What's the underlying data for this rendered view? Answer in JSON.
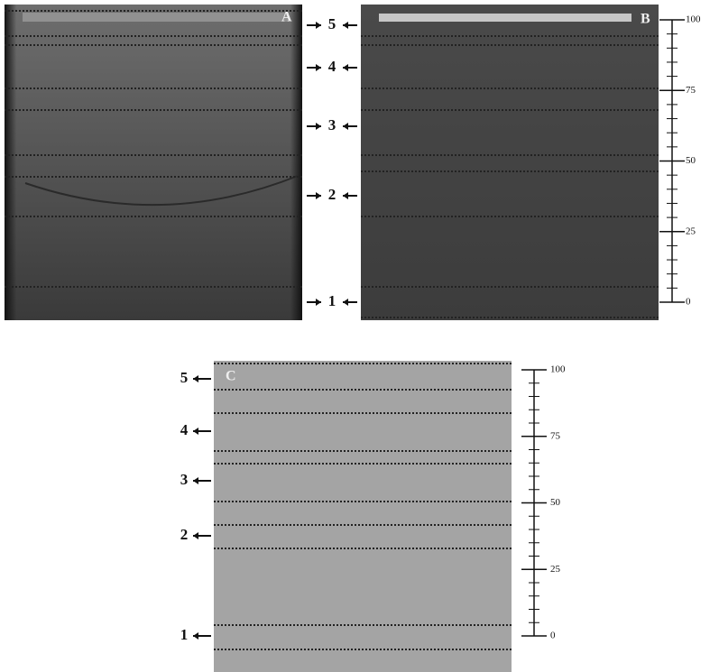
{
  "panels": [
    {
      "label": "A"
    },
    {
      "label": "B"
    },
    {
      "label": "C"
    }
  ],
  "zone_labels_ab": [
    "5",
    "4",
    "3",
    "2",
    "1"
  ],
  "zone_labels_c": [
    "5",
    "4",
    "3",
    "2",
    "1"
  ],
  "scale_b": [
    "100",
    "75",
    "50",
    "25",
    "0"
  ],
  "scale_c": [
    "100",
    "75",
    "50",
    "25",
    "0"
  ]
}
